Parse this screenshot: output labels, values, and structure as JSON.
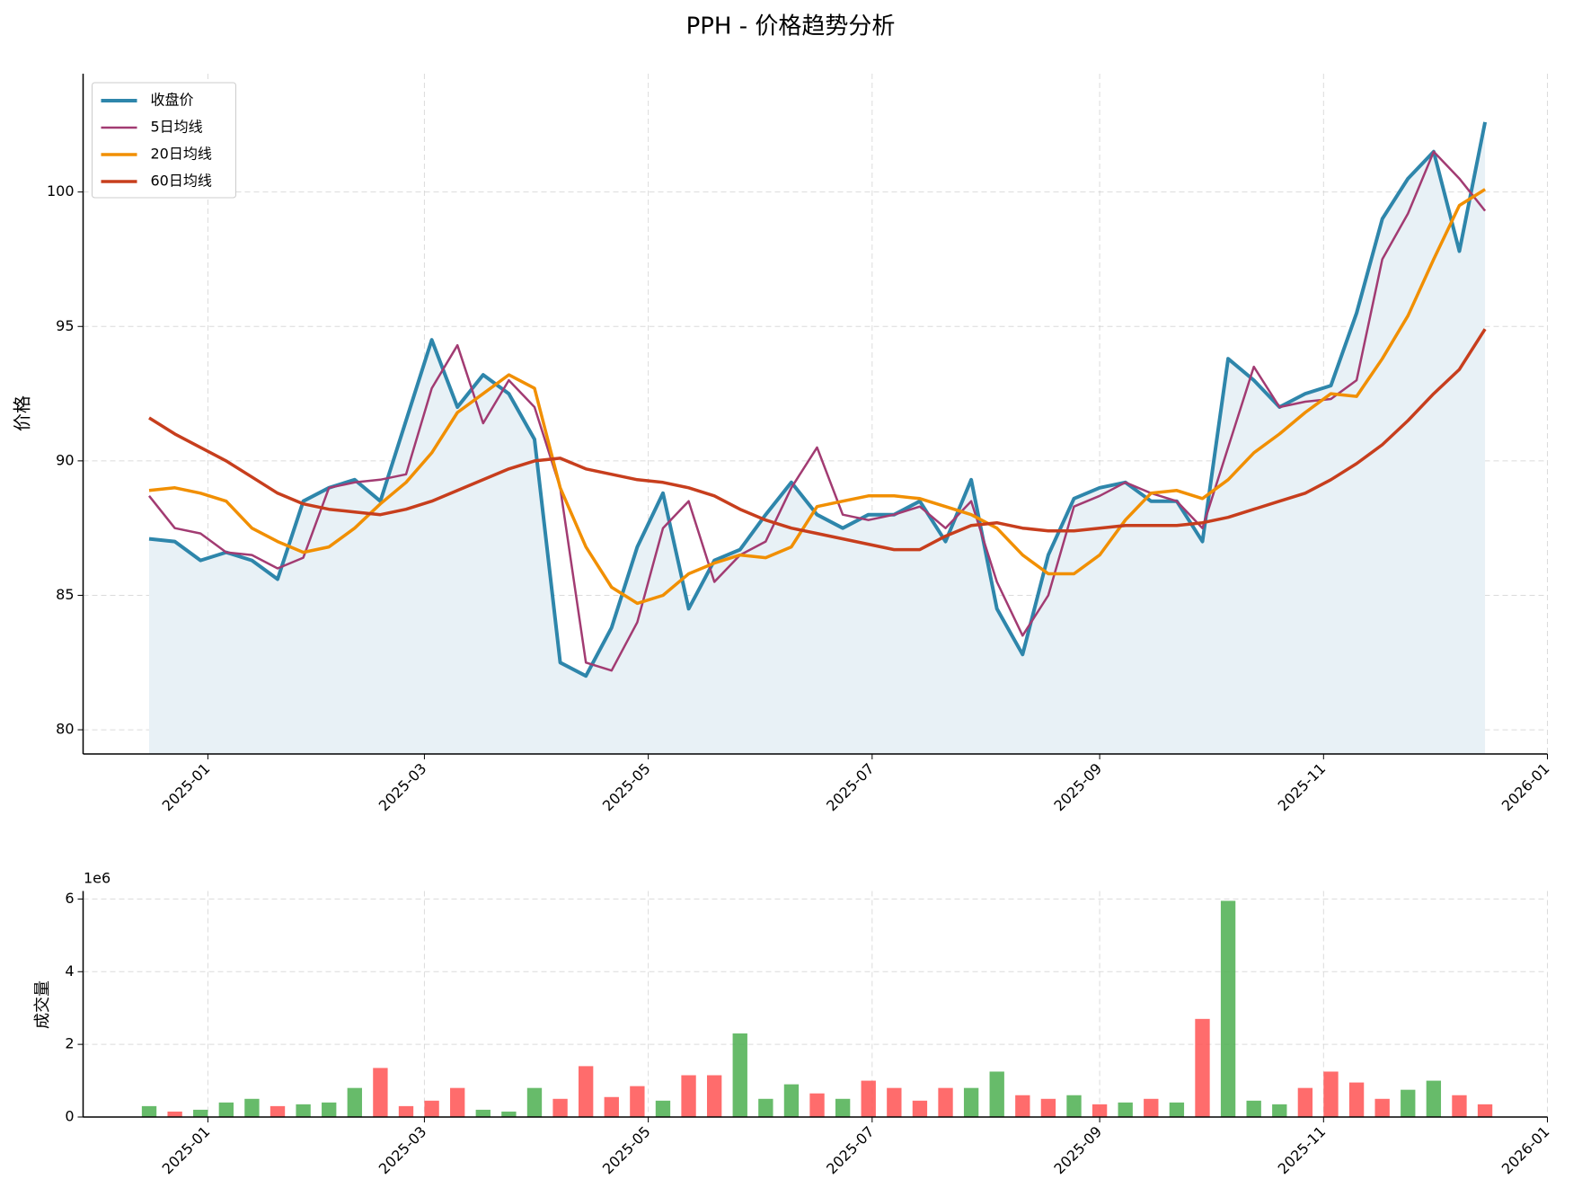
{
  "chart_data": [
    {
      "type": "line",
      "title": "PPH - 价格趋势分析",
      "ylabel": "价格",
      "x": [
        "2024-12-16",
        "2024-12-23",
        "2024-12-30",
        "2025-01-06",
        "2025-01-13",
        "2025-01-20",
        "2025-01-27",
        "2025-02-03",
        "2025-02-10",
        "2025-02-17",
        "2025-02-24",
        "2025-03-03",
        "2025-03-10",
        "2025-03-17",
        "2025-03-24",
        "2025-03-31",
        "2025-04-07",
        "2025-04-14",
        "2025-04-21",
        "2025-04-28",
        "2025-05-05",
        "2025-05-12",
        "2025-05-19",
        "2025-05-26",
        "2025-06-02",
        "2025-06-09",
        "2025-06-16",
        "2025-06-23",
        "2025-06-30",
        "2025-07-07",
        "2025-07-14",
        "2025-07-21",
        "2025-07-28",
        "2025-08-04",
        "2025-08-11",
        "2025-08-18",
        "2025-08-25",
        "2025-09-01",
        "2025-09-08",
        "2025-09-15",
        "2025-09-22",
        "2025-09-29",
        "2025-10-06",
        "2025-10-13",
        "2025-10-20",
        "2025-10-27",
        "2025-11-03",
        "2025-11-10",
        "2025-11-17",
        "2025-11-24",
        "2025-12-01",
        "2025-12-08",
        "2025-12-15"
      ],
      "series": [
        {
          "name": "收盘价",
          "color": "#2e86ab",
          "width": 4,
          "fill": "#e8f1f6",
          "values": [
            87.1,
            87.0,
            86.3,
            86.6,
            86.3,
            85.6,
            88.5,
            89.0,
            89.3,
            88.5,
            91.5,
            94.5,
            92.0,
            93.2,
            92.5,
            90.8,
            82.5,
            82.0,
            83.8,
            86.8,
            88.8,
            84.5,
            86.3,
            86.7,
            88.0,
            89.2,
            88.0,
            87.5,
            88.0,
            88.0,
            88.5,
            87.0,
            89.3,
            84.5,
            82.8,
            86.5,
            88.6,
            89.0,
            89.2,
            88.5,
            88.5,
            87.0,
            93.8,
            93.0,
            92.0,
            92.5,
            92.8,
            95.5,
            99.0,
            100.5,
            101.5,
            97.8,
            102.6
          ]
        },
        {
          "name": "5日均线",
          "color": "#a23b72",
          "width": 2.5,
          "values": [
            88.7,
            87.5,
            87.3,
            86.6,
            86.5,
            86.0,
            86.4,
            89.0,
            89.2,
            89.3,
            89.5,
            92.7,
            94.3,
            91.4,
            93.0,
            92.0,
            89.0,
            82.5,
            82.2,
            84.0,
            87.5,
            88.5,
            85.5,
            86.5,
            87.0,
            89.0,
            90.5,
            88.0,
            87.8,
            88.0,
            88.3,
            87.5,
            88.5,
            85.5,
            83.5,
            85.0,
            88.3,
            88.7,
            89.2,
            88.8,
            88.5,
            87.5,
            90.5,
            93.5,
            92.0,
            92.2,
            92.3,
            93.0,
            97.5,
            99.2,
            101.5,
            100.5,
            99.3
          ]
        },
        {
          "name": "20日均线",
          "color": "#f18f01",
          "width": 3.5,
          "values": [
            88.9,
            89.0,
            88.8,
            88.5,
            87.5,
            87.0,
            86.6,
            86.8,
            87.5,
            88.4,
            89.2,
            90.3,
            91.8,
            92.5,
            93.2,
            92.7,
            89.0,
            86.8,
            85.3,
            84.7,
            85.0,
            85.8,
            86.2,
            86.5,
            86.4,
            86.8,
            88.3,
            88.5,
            88.7,
            88.7,
            88.6,
            88.3,
            88.0,
            87.5,
            86.5,
            85.8,
            85.8,
            86.5,
            87.8,
            88.8,
            88.9,
            88.6,
            89.3,
            90.3,
            91.0,
            91.8,
            92.5,
            92.4,
            93.8,
            95.4,
            97.5,
            99.5,
            100.1
          ]
        },
        {
          "name": "60日均线",
          "color": "#c73e1d",
          "width": 3.5,
          "values": [
            91.6,
            91.0,
            90.5,
            90.0,
            89.4,
            88.8,
            88.4,
            88.2,
            88.1,
            88.0,
            88.2,
            88.5,
            88.9,
            89.3,
            89.7,
            90.0,
            90.1,
            89.7,
            89.5,
            89.3,
            89.2,
            89.0,
            88.7,
            88.2,
            87.8,
            87.5,
            87.3,
            87.1,
            86.9,
            86.7,
            86.7,
            87.2,
            87.6,
            87.7,
            87.5,
            87.4,
            87.4,
            87.5,
            87.6,
            87.6,
            87.6,
            87.7,
            87.9,
            88.2,
            88.5,
            88.8,
            89.3,
            89.9,
            90.6,
            91.5,
            92.5,
            93.4,
            94.9
          ]
        }
      ],
      "xlim": [
        "2024-11-28",
        "2026-01-01"
      ],
      "xticks": [
        {
          "value": "2025-01-01",
          "label": "2025-01"
        },
        {
          "value": "2025-03-01",
          "label": "2025-03"
        },
        {
          "value": "2025-05-01",
          "label": "2025-05"
        },
        {
          "value": "2025-07-01",
          "label": "2025-07"
        },
        {
          "value": "2025-09-01",
          "label": "2025-09"
        },
        {
          "value": "2025-11-01",
          "label": "2025-11"
        },
        {
          "value": "2026-01-01",
          "label": "2026-01"
        }
      ],
      "ylim": [
        79.1,
        104.4
      ],
      "yticks": [
        80,
        85,
        90,
        95,
        100
      ],
      "grid": true,
      "legend": "upper left"
    },
    {
      "type": "bar",
      "ylabel": "成交量",
      "offset_label": "1e6",
      "x": [
        "2024-12-16",
        "2024-12-23",
        "2024-12-30",
        "2025-01-06",
        "2025-01-13",
        "2025-01-20",
        "2025-01-27",
        "2025-02-03",
        "2025-02-10",
        "2025-02-17",
        "2025-02-24",
        "2025-03-03",
        "2025-03-10",
        "2025-03-17",
        "2025-03-24",
        "2025-03-31",
        "2025-04-07",
        "2025-04-14",
        "2025-04-21",
        "2025-04-28",
        "2025-05-05",
        "2025-05-12",
        "2025-05-19",
        "2025-05-26",
        "2025-06-02",
        "2025-06-09",
        "2025-06-16",
        "2025-06-23",
        "2025-06-30",
        "2025-07-07",
        "2025-07-14",
        "2025-07-21",
        "2025-07-28",
        "2025-08-04",
        "2025-08-11",
        "2025-08-18",
        "2025-08-25",
        "2025-09-01",
        "2025-09-08",
        "2025-09-15",
        "2025-09-22",
        "2025-09-29",
        "2025-10-06",
        "2025-10-13",
        "2025-10-20",
        "2025-10-27",
        "2025-11-03",
        "2025-11-10",
        "2025-11-17",
        "2025-11-24",
        "2025-12-01",
        "2025-12-08",
        "2025-12-15"
      ],
      "values": [
        0.3,
        0.15,
        0.2,
        0.4,
        0.5,
        0.3,
        0.35,
        0.4,
        0.8,
        1.35,
        0.3,
        0.45,
        0.8,
        0.2,
        0.15,
        0.8,
        0.5,
        1.4,
        0.55,
        0.85,
        0.45,
        1.15,
        1.15,
        2.3,
        0.5,
        0.9,
        0.65,
        0.5,
        1.0,
        0.8,
        0.45,
        0.8,
        0.8,
        1.25,
        0.6,
        0.5,
        0.6,
        0.35,
        0.4,
        0.5,
        0.4,
        2.7,
        5.95,
        0.45,
        0.35,
        0.8,
        1.25,
        0.95,
        0.5,
        0.75,
        1.0,
        0.6,
        0.35
      ],
      "colors": [
        "#4caf50",
        "#ff5252",
        "#4caf50",
        "#4caf50",
        "#4caf50",
        "#ff5252",
        "#4caf50",
        "#4caf50",
        "#4caf50",
        "#ff5252",
        "#ff5252",
        "#ff5252",
        "#ff5252",
        "#4caf50",
        "#4caf50",
        "#4caf50",
        "#ff5252",
        "#ff5252",
        "#ff5252",
        "#ff5252",
        "#4caf50",
        "#ff5252",
        "#ff5252",
        "#4caf50",
        "#4caf50",
        "#4caf50",
        "#ff5252",
        "#4caf50",
        "#ff5252",
        "#ff5252",
        "#ff5252",
        "#ff5252",
        "#4caf50",
        "#4caf50",
        "#ff5252",
        "#ff5252",
        "#4caf50",
        "#ff5252",
        "#4caf50",
        "#ff5252",
        "#4caf50",
        "#ff5252",
        "#4caf50",
        "#4caf50",
        "#4caf50",
        "#ff5252",
        "#ff5252",
        "#ff5252",
        "#ff5252",
        "#4caf50",
        "#4caf50",
        "#ff5252",
        "#ff5252"
      ],
      "xlim": [
        "2024-11-28",
        "2026-01-01"
      ],
      "xticks": [
        {
          "value": "2025-01-01",
          "label": "2025-01"
        },
        {
          "value": "2025-03-01",
          "label": "2025-03"
        },
        {
          "value": "2025-05-01",
          "label": "2025-05"
        },
        {
          "value": "2025-07-01",
          "label": "2025-07"
        },
        {
          "value": "2025-09-01",
          "label": "2025-09"
        },
        {
          "value": "2025-11-01",
          "label": "2025-11"
        },
        {
          "value": "2026-01-01",
          "label": "2026-01"
        }
      ],
      "ylim": [
        0,
        6.22
      ],
      "yticks": [
        0,
        2,
        4,
        6
      ],
      "grid": true
    }
  ]
}
